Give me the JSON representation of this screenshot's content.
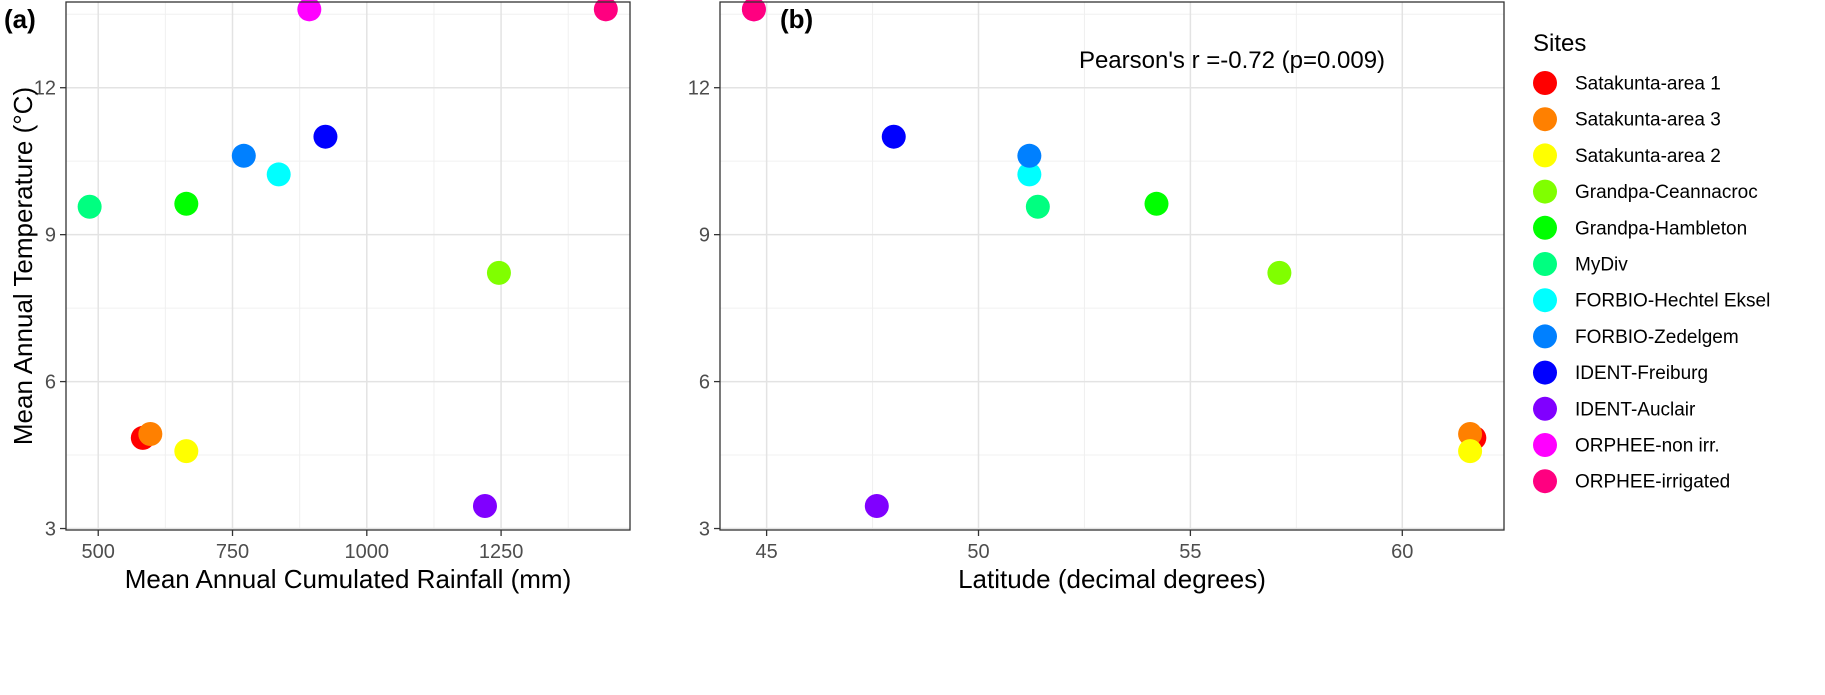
{
  "chart_data": [
    {
      "type": "scatter",
      "panel_label": "(a)",
      "xlabel": "Mean Annual Cumulated Rainfall (mm)",
      "ylabel": "Mean Annual Temperature (°C)",
      "xlim": [
        440,
        1490
      ],
      "ylim": [
        2.97,
        13.75
      ],
      "xticks": [
        500,
        750,
        1000,
        1250
      ],
      "xticklabels": [
        "500",
        "750",
        "1000",
        "1250"
      ],
      "yticks": [
        3,
        6,
        9,
        12
      ],
      "yticklabels": [
        "3",
        "6",
        "9",
        "12"
      ],
      "grid": true,
      "points": [
        {
          "site": "Satakunta-area 1",
          "x": 583,
          "y": 4.85
        },
        {
          "site": "Satakunta-area 3",
          "x": 597,
          "y": 4.93
        },
        {
          "site": "Satakunta-area 2",
          "x": 664,
          "y": 4.58
        },
        {
          "site": "Grandpa-Ceannacroc",
          "x": 1246,
          "y": 8.22
        },
        {
          "site": "Grandpa-Hambleton",
          "x": 664,
          "y": 9.63
        },
        {
          "site": "MyDiv",
          "x": 484,
          "y": 9.57
        },
        {
          "site": "FORBIO-Hechtel Eksel",
          "x": 836,
          "y": 10.23
        },
        {
          "site": "FORBIO-Zedelgem",
          "x": 771,
          "y": 10.61
        },
        {
          "site": "IDENT-Freiburg",
          "x": 923,
          "y": 11.0
        },
        {
          "site": "IDENT-Auclair",
          "x": 1220,
          "y": 3.46
        },
        {
          "site": "ORPHEE-non irr.",
          "x": 893,
          "y": 13.6
        },
        {
          "site": "ORPHEE-irrigated",
          "x": 1445,
          "y": 13.6
        }
      ]
    },
    {
      "type": "scatter",
      "panel_label": "(b)",
      "xlabel": "Latitude (decimal degrees)",
      "ylabel": "",
      "xlim": [
        43.9,
        62.4
      ],
      "ylim": [
        2.97,
        13.75
      ],
      "xticks": [
        45,
        50,
        55,
        60
      ],
      "xticklabels": [
        "45",
        "50",
        "55",
        "60"
      ],
      "yticks": [
        3,
        6,
        9,
        12
      ],
      "yticklabels": [
        "3",
        "6",
        "9",
        "12"
      ],
      "grid": true,
      "annotation": "Pearson's r =-0.72 (p=0.009)",
      "points": [
        {
          "site": "Satakunta-area 1",
          "x": 61.7,
          "y": 4.85
        },
        {
          "site": "Satakunta-area 3",
          "x": 61.6,
          "y": 4.93
        },
        {
          "site": "Satakunta-area 2",
          "x": 61.6,
          "y": 4.58
        },
        {
          "site": "Grandpa-Ceannacroc",
          "x": 57.1,
          "y": 8.22
        },
        {
          "site": "Grandpa-Hambleton",
          "x": 54.2,
          "y": 9.63
        },
        {
          "site": "MyDiv",
          "x": 51.4,
          "y": 9.57
        },
        {
          "site": "FORBIO-Hechtel Eksel",
          "x": 51.2,
          "y": 10.23
        },
        {
          "site": "FORBIO-Zedelgem",
          "x": 51.2,
          "y": 10.61
        },
        {
          "site": "IDENT-Freiburg",
          "x": 48.0,
          "y": 11.0
        },
        {
          "site": "IDENT-Auclair",
          "x": 47.6,
          "y": 3.46
        },
        {
          "site": "ORPHEE-non irr.",
          "x": 44.7,
          "y": 13.6
        },
        {
          "site": "ORPHEE-irrigated",
          "x": 44.7,
          "y": 13.6
        }
      ]
    }
  ],
  "legend": {
    "title": "Sites",
    "placement": "right",
    "items": [
      {
        "name": "Satakunta-area 1",
        "color": "#FF0000"
      },
      {
        "name": "Satakunta-area 3",
        "color": "#FF8000"
      },
      {
        "name": "Satakunta-area 2",
        "color": "#FFFF00"
      },
      {
        "name": "Grandpa-Ceannacroc",
        "color": "#80FF00"
      },
      {
        "name": "Grandpa-Hambleton",
        "color": "#00FF00"
      },
      {
        "name": "MyDiv",
        "color": "#00FF80"
      },
      {
        "name": "FORBIO-Hechtel Eksel",
        "color": "#00FFFF"
      },
      {
        "name": "FORBIO-Zedelgem",
        "color": "#0080FF"
      },
      {
        "name": "IDENT-Freiburg",
        "color": "#0000FF"
      },
      {
        "name": "IDENT-Auclair",
        "color": "#8000FF"
      },
      {
        "name": "ORPHEE-non irr.",
        "color": "#FF00FF"
      },
      {
        "name": "ORPHEE-irrigated",
        "color": "#FF0080"
      }
    ]
  }
}
